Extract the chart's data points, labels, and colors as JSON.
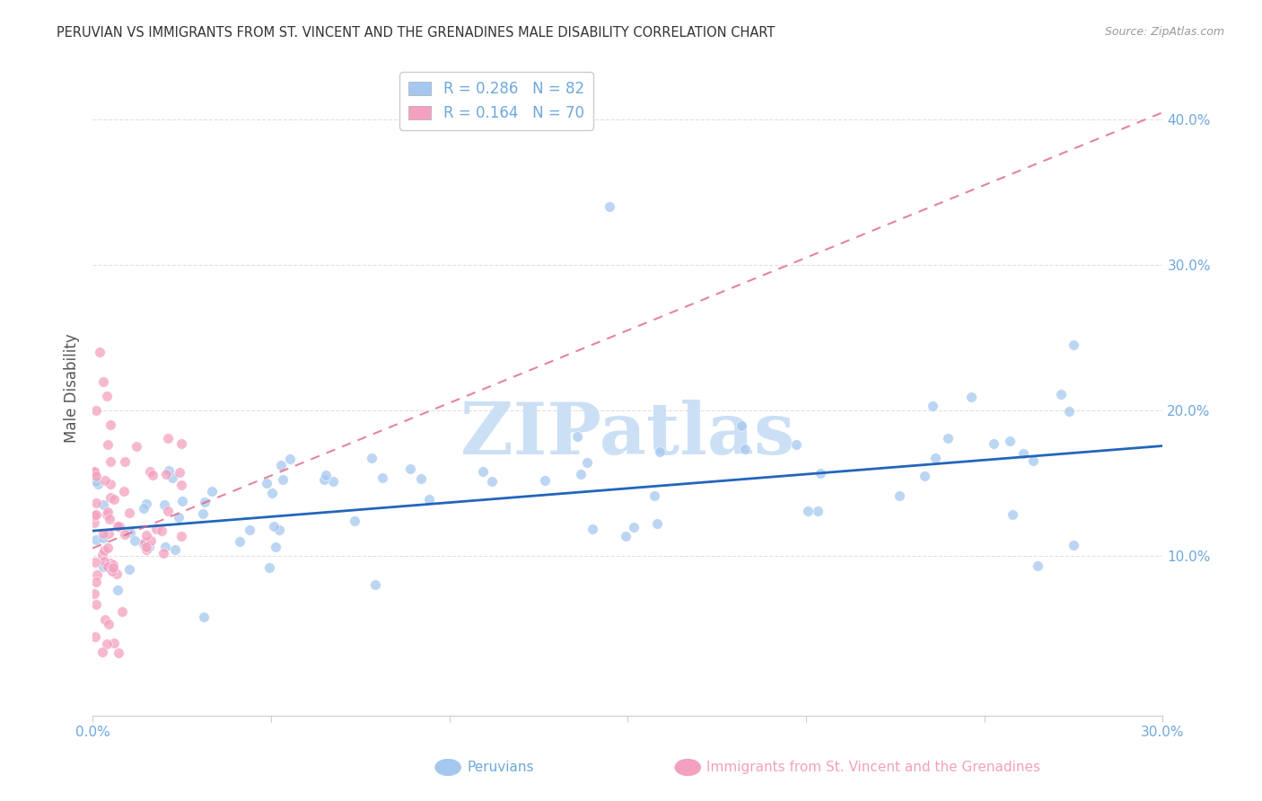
{
  "title": "PERUVIAN VS IMMIGRANTS FROM ST. VINCENT AND THE GRENADINES MALE DISABILITY CORRELATION CHART",
  "source": "Source: ZipAtlas.com",
  "ylabel": "Male Disability",
  "xlim": [
    0.0,
    0.3
  ],
  "ylim": [
    -0.01,
    0.44
  ],
  "yticks": [
    0.1,
    0.2,
    0.3,
    0.4
  ],
  "xticks": [
    0.0,
    0.05,
    0.1,
    0.15,
    0.2,
    0.25,
    0.3
  ],
  "tick_color": "#6fa8dc",
  "blue_scatter_color": "#a4c8f0",
  "pink_scatter_color": "#f4a0c0",
  "blue_line_color": "#2266bb",
  "pink_line_color": "#dd6688",
  "legend_blue_label": "R = 0.286   N = 82",
  "legend_pink_label": "R = 0.164   N = 70",
  "peruvian_label": "Peruvians",
  "immigrant_label": "Immigrants from St. Vincent and the Grenadines",
  "blue_intercept": 0.117,
  "blue_slope": 0.195,
  "pink_intercept": 0.105,
  "pink_slope": 1.0,
  "watermark_text": "ZIPatlas",
  "watermark_color": "#cce0f5",
  "background_color": "#ffffff",
  "grid_color": "#e0e0e0",
  "title_color": "#333333",
  "source_color": "#999999",
  "ylabel_color": "#555555"
}
